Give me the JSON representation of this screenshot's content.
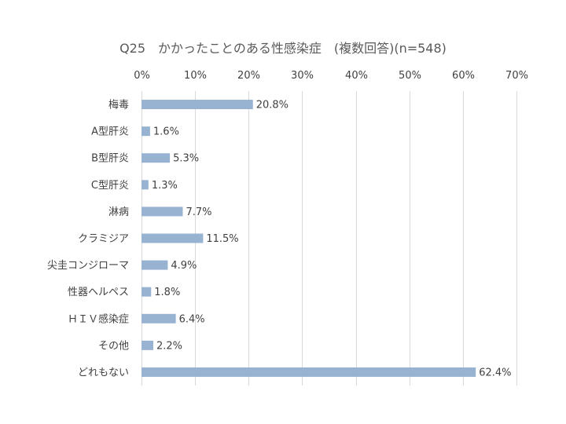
{
  "chart_data": {
    "type": "bar",
    "orientation": "horizontal",
    "title": "Q25　かかったことのある性感染症　(複数回答)(n=548)",
    "categories": [
      "梅毒",
      "A型肝炎",
      "B型肝炎",
      "C型肝炎",
      "淋病",
      "クラミジア",
      "尖圭コンジローマ",
      "性器ヘルペス",
      "ＨＩＶ感染症",
      "その他",
      "どれもない"
    ],
    "values": [
      20.8,
      1.6,
      5.3,
      1.3,
      7.7,
      11.5,
      4.9,
      1.8,
      6.4,
      2.2,
      62.4
    ],
    "value_labels": [
      "20.8%",
      "1.6%",
      "5.3%",
      "1.3%",
      "7.7%",
      "11.5%",
      "4.9%",
      "1.8%",
      "6.4%",
      "2.2%",
      "62.4%"
    ],
    "x_ticks": [
      "0%",
      "10%",
      "20%",
      "30%",
      "40%",
      "50%",
      "60%",
      "70%"
    ],
    "xlim": [
      0,
      70
    ],
    "x_axis_position": "top",
    "grid": true,
    "bar_color": "#97b3d1",
    "grid_color": "#d9d9d9",
    "legend": "none"
  }
}
